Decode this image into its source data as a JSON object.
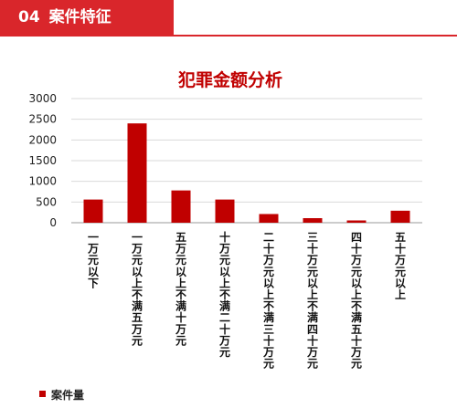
{
  "header": {
    "number": "04",
    "title": "案件特征",
    "accent_color": "#d9262b"
  },
  "chart_data": {
    "type": "bar",
    "title": "犯罪金额分析",
    "xlabel": "",
    "ylabel": "",
    "ylim": [
      0,
      3000
    ],
    "yticks": [
      0,
      500,
      1000,
      1500,
      2000,
      2500,
      3000
    ],
    "grid": true,
    "legend_placement": "bottom-left",
    "bar_color": "#c00000",
    "categories": [
      "一万元以下",
      "一万元以上不满五万元",
      "五万元以上不满十万元",
      "十万元以上不满二十万元",
      "二十万元以上不满三十万元",
      "三十万元以上不满四十万元",
      "四十万元以上不满五十万元",
      "五十万元以上"
    ],
    "series": [
      {
        "name": "案件量",
        "values": [
          560,
          2400,
          780,
          560,
          210,
          110,
          55,
          290
        ]
      }
    ]
  }
}
